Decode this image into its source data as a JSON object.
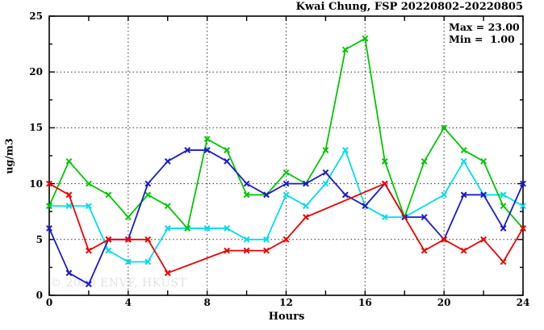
{
  "title": "Kwai Chung, FSP 20220802–20220805",
  "legend": {
    "max_label": "Max = 23.00",
    "min_label": "Min =  1.00"
  },
  "watermark": "© 2020 ENVF, HKUST",
  "chart_data": {
    "type": "line",
    "title": "Kwai Chung, FSP 20220802–20220805",
    "xlabel": "Hours",
    "ylabel": "ug/m3",
    "xlim": [
      0,
      24
    ],
    "ylim": [
      0,
      25
    ],
    "xticks_major": [
      0,
      4,
      8,
      12,
      16,
      20,
      24
    ],
    "xticks_minor": [
      2,
      6,
      10,
      14,
      18,
      22
    ],
    "yticks_major": [
      0,
      5,
      10,
      15,
      20,
      25
    ],
    "yticks_minor": [
      2.5,
      7.5,
      12.5,
      17.5,
      22.5
    ],
    "grid_x": [
      4,
      8,
      12,
      16,
      20
    ],
    "grid_y": [
      5,
      10,
      15,
      20
    ],
    "grid_on": true,
    "legend_position": "top-right-inside",
    "x": [
      0,
      1,
      2,
      3,
      4,
      5,
      6,
      7,
      8,
      9,
      10,
      11,
      12,
      13,
      14,
      15,
      16,
      17,
      18,
      19,
      20,
      21,
      22,
      23,
      24
    ],
    "series": [
      {
        "name": "series-cyan",
        "color": "#00dde8",
        "values": [
          8,
          8,
          8,
          4,
          3,
          3,
          6,
          6,
          6,
          6,
          5,
          5,
          9,
          8,
          10,
          13,
          8,
          7,
          7,
          null,
          9,
          12,
          9,
          9,
          8
        ]
      },
      {
        "name": "series-green",
        "color": "#00c800",
        "values": [
          8,
          12,
          10,
          9,
          7,
          9,
          8,
          6,
          14,
          13,
          9,
          9,
          11,
          10,
          13,
          22,
          23,
          12,
          7,
          12,
          15,
          13,
          12,
          8,
          6
        ]
      },
      {
        "name": "series-blue",
        "color": "#1a1acd",
        "values": [
          6,
          2,
          1,
          5,
          5,
          10,
          12,
          13,
          13,
          12,
          10,
          9,
          10,
          10,
          11,
          9,
          8,
          10,
          7,
          7,
          5,
          9,
          9,
          6,
          10
        ]
      },
      {
        "name": "series-red",
        "color": "#ee0000",
        "values": [
          10,
          9,
          4,
          5,
          5,
          5,
          2,
          null,
          null,
          4,
          4,
          4,
          5,
          7,
          null,
          null,
          null,
          10,
          null,
          4,
          5,
          4,
          5,
          3,
          6
        ]
      }
    ],
    "stats": {
      "max": 23.0,
      "min": 1.0
    }
  }
}
